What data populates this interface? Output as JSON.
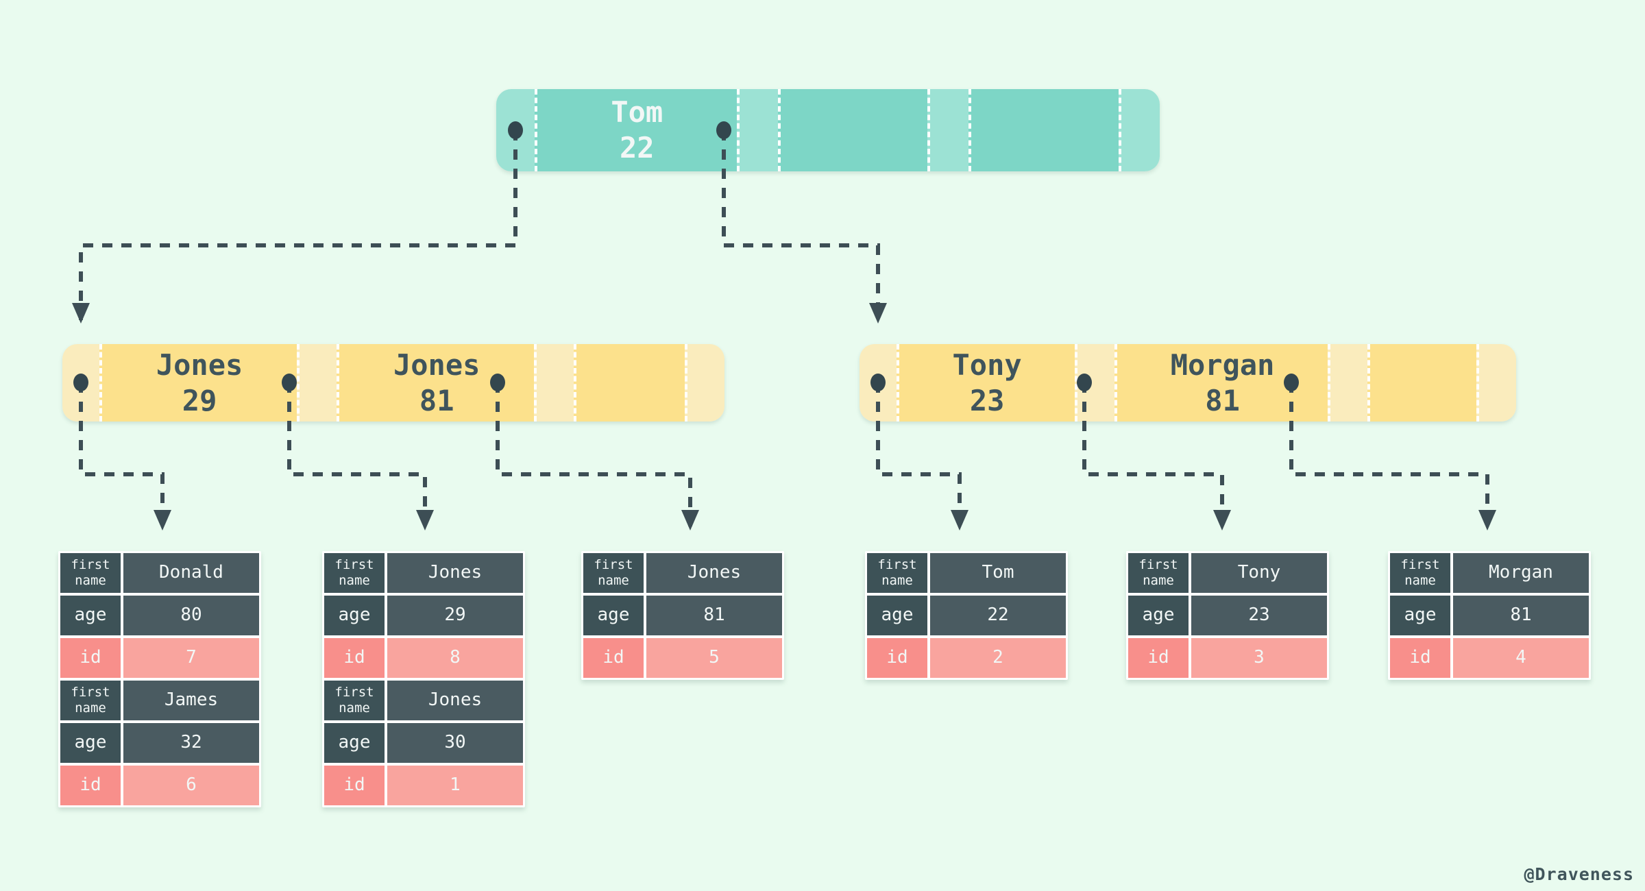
{
  "diagram": "b-tree-index",
  "colors": {
    "background": "#e9fbef",
    "teal_key": "#7dd6c6",
    "teal_pointer": "#9ce2d4",
    "yellow_key": "#fce18c",
    "yellow_pointer": "#faecbd",
    "slate_label": "#3d5257",
    "slate_value": "#4a5b61",
    "pink_label": "#f88f8b",
    "pink_value": "#f9a49e",
    "connector": "#3d4e55",
    "dot": "#33464e"
  },
  "nodes": [
    {
      "id": "root",
      "palette": "teal",
      "keys": [
        {
          "line1": "Tom",
          "line2": "22"
        },
        {
          "line1": "",
          "line2": ""
        },
        {
          "line1": "",
          "line2": ""
        }
      ],
      "pointer_dots": [
        true,
        true,
        false,
        false
      ]
    },
    {
      "id": "left-child",
      "palette": "yellow",
      "keys": [
        {
          "line1": "Jones",
          "line2": "29"
        },
        {
          "line1": "Jones",
          "line2": "81"
        },
        {
          "line1": "",
          "line2": ""
        }
      ],
      "pointer_dots": [
        true,
        true,
        true,
        false
      ]
    },
    {
      "id": "right-child",
      "palette": "yellow",
      "keys": [
        {
          "line1": "Tony",
          "line2": "23"
        },
        {
          "line1": "Morgan",
          "line2": "81"
        },
        {
          "line1": "",
          "line2": ""
        }
      ],
      "pointer_dots": [
        true,
        true,
        true,
        false
      ]
    }
  ],
  "field_labels": {
    "first_name": [
      "first",
      "name"
    ],
    "age": "age",
    "id": "id"
  },
  "tables": [
    {
      "records": [
        {
          "first_name": "Donald",
          "age": "80",
          "id": "7"
        },
        {
          "first_name": "James",
          "age": "32",
          "id": "6"
        }
      ]
    },
    {
      "records": [
        {
          "first_name": "Jones",
          "age": "29",
          "id": "8"
        },
        {
          "first_name": "Jones",
          "age": "30",
          "id": "1"
        }
      ]
    },
    {
      "records": [
        {
          "first_name": "Jones",
          "age": "81",
          "id": "5"
        }
      ]
    },
    {
      "records": [
        {
          "first_name": "Tom",
          "age": "22",
          "id": "2"
        }
      ]
    },
    {
      "records": [
        {
          "first_name": "Tony",
          "age": "23",
          "id": "3"
        }
      ]
    },
    {
      "records": [
        {
          "first_name": "Morgan",
          "age": "81",
          "id": "4"
        }
      ]
    }
  ],
  "watermark": "@Draveness"
}
